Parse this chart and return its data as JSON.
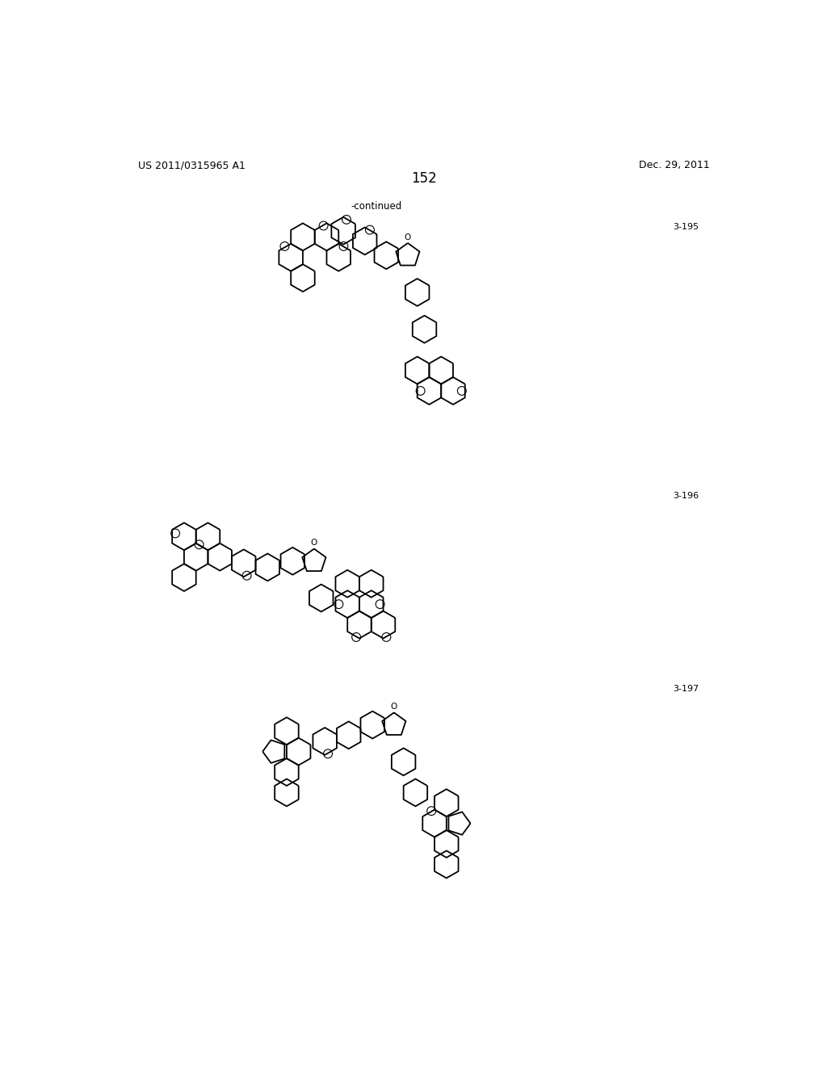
{
  "background_color": "#ffffff",
  "page_number": "152",
  "header_left": "US 2011/0315965 A1",
  "header_right": "Dec. 29, 2011",
  "continued_text": "-continued",
  "compound_labels": [
    "3-195",
    "3-196",
    "3-197"
  ],
  "figsize": [
    10.24,
    13.2
  ],
  "dpi": 100
}
